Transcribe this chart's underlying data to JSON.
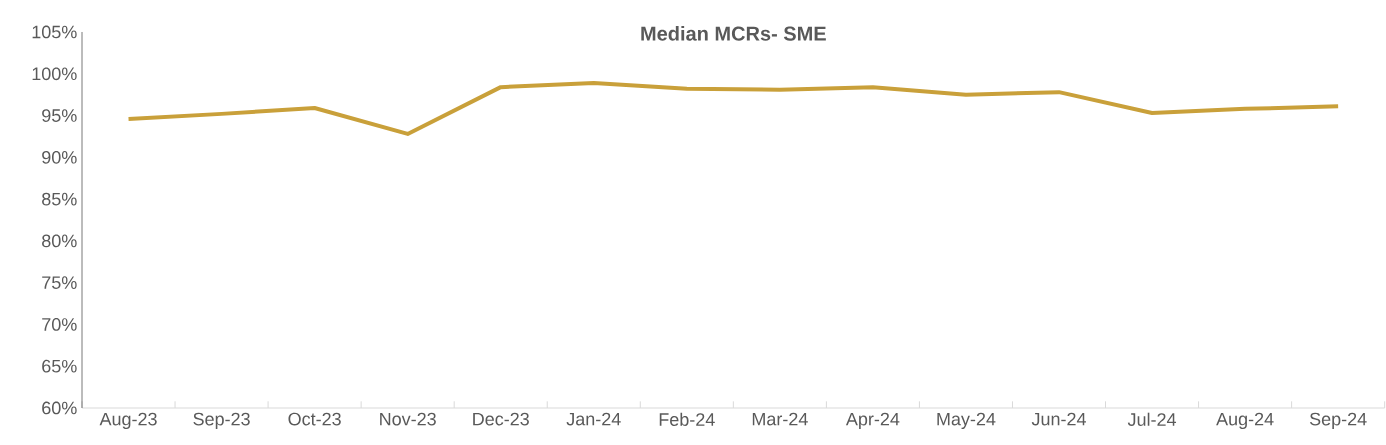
{
  "chart_data": {
    "type": "line",
    "title": "Median MCRs- SME",
    "categories": [
      "Aug-23",
      "Sep-23",
      "Oct-23",
      "Nov-23",
      "Dec-23",
      "Jan-24",
      "Feb-24",
      "Mar-24",
      "Apr-24",
      "May-24",
      "Jun-24",
      "Jul-24",
      "Aug-24",
      "Sep-24"
    ],
    "values": [
      94.6,
      95.2,
      95.9,
      92.8,
      98.4,
      98.9,
      98.2,
      98.1,
      98.4,
      97.5,
      97.8,
      95.3,
      95.8,
      96.1
    ],
    "color": "#c9a03a",
    "ylim": [
      60,
      105
    ],
    "yticks": [
      {
        "value": 60,
        "label": "60%"
      },
      {
        "value": 65,
        "label": "65%"
      },
      {
        "value": 70,
        "label": "70%"
      },
      {
        "value": 75,
        "label": "75%"
      },
      {
        "value": 80,
        "label": "80%"
      },
      {
        "value": 85,
        "label": "85%"
      },
      {
        "value": 90,
        "label": "90%"
      },
      {
        "value": 95,
        "label": "95%"
      },
      {
        "value": 100,
        "label": "100%"
      },
      {
        "value": 105,
        "label": "105%"
      }
    ]
  }
}
